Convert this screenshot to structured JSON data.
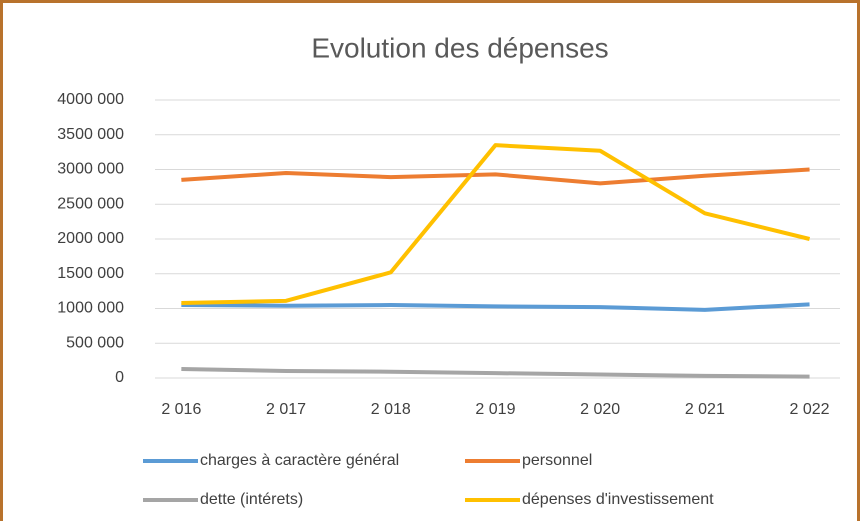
{
  "chart_data": {
    "type": "line",
    "title": "Evolution des dépenses",
    "categories": [
      "2 016",
      "2 017",
      "2 018",
      "2 019",
      "2 020",
      "2 021",
      "2 022"
    ],
    "series": [
      {
        "name": "charges à caractère général",
        "color": "#5b9bd5",
        "values": [
          1050000,
          1040000,
          1050000,
          1030000,
          1020000,
          980000,
          1060000
        ]
      },
      {
        "name": "personnel",
        "color": "#ed7d31",
        "values": [
          2850000,
          2950000,
          2890000,
          2930000,
          2800000,
          2910000,
          3000000
        ]
      },
      {
        "name": "dette (intérets)",
        "color": "#a5a5a5",
        "values": [
          130000,
          100000,
          90000,
          70000,
          50000,
          30000,
          20000
        ]
      },
      {
        "name": "dépenses d'investissement",
        "color": "#ffc000",
        "values": [
          1080000,
          1110000,
          1520000,
          3350000,
          3270000,
          2370000,
          2000000
        ]
      }
    ],
    "ylim": [
      0,
      4000000
    ],
    "yticks": [
      0,
      {
        "value": 500000,
        "label": "500 000"
      },
      {
        "value": 1000000,
        "label": "1000 000"
      },
      {
        "value": 1500000,
        "label": "1500 000"
      },
      {
        "value": 2000000,
        "label": "2000 000"
      },
      {
        "value": 2500000,
        "label": "2500 000"
      },
      {
        "value": 3000000,
        "label": "3000 000"
      },
      {
        "value": 3500000,
        "label": "3500 000"
      },
      {
        "value": 4000000,
        "label": "4000 000"
      }
    ],
    "grid": true,
    "legend": "bottom"
  }
}
